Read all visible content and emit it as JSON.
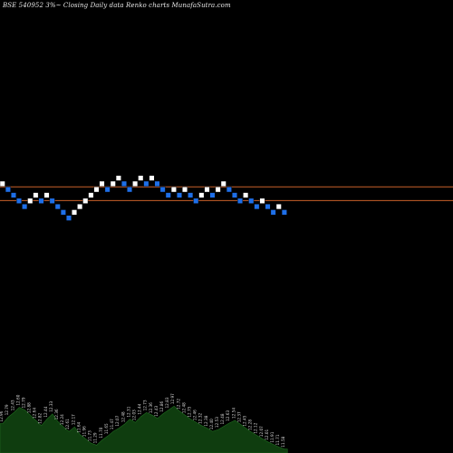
{
  "title": "BSE 540952  3%~  Closing Daily data  Renko  charts MunafaSutra.com",
  "colors": {
    "background": "#000000",
    "brick_up": "#ffffff",
    "brick_down": "#1e6fe8",
    "brick_border": "#000000",
    "reference_line": "#c8602a",
    "volume_fill": "#0f3d0f",
    "volume_stroke": "#1f6b1f",
    "label": "#d9d9d9"
  },
  "chart_data": [
    {
      "type": "renko",
      "title": "BSE 540952  3%~  Closing Daily data  Renko  charts MunafaSutra.com",
      "brick_size": "3%",
      "bricks": [
        {
          "level": 0,
          "dir": "up"
        },
        {
          "level": 1,
          "dir": "down"
        },
        {
          "level": 2,
          "dir": "down"
        },
        {
          "level": 3,
          "dir": "down"
        },
        {
          "level": 4,
          "dir": "down"
        },
        {
          "level": 3,
          "dir": "up"
        },
        {
          "level": 2,
          "dir": "up"
        },
        {
          "level": 3,
          "dir": "down"
        },
        {
          "level": 2,
          "dir": "up"
        },
        {
          "level": 3,
          "dir": "down"
        },
        {
          "level": 4,
          "dir": "down"
        },
        {
          "level": 5,
          "dir": "down"
        },
        {
          "level": 6,
          "dir": "down"
        },
        {
          "level": 5,
          "dir": "up"
        },
        {
          "level": 4,
          "dir": "up"
        },
        {
          "level": 3,
          "dir": "up"
        },
        {
          "level": 2,
          "dir": "up"
        },
        {
          "level": 1,
          "dir": "up"
        },
        {
          "level": 0,
          "dir": "up"
        },
        {
          "level": 1,
          "dir": "down"
        },
        {
          "level": 0,
          "dir": "up"
        },
        {
          "level": -1,
          "dir": "up"
        },
        {
          "level": 0,
          "dir": "down"
        },
        {
          "level": 1,
          "dir": "down"
        },
        {
          "level": 0,
          "dir": "up"
        },
        {
          "level": -1,
          "dir": "up"
        },
        {
          "level": 0,
          "dir": "down"
        },
        {
          "level": -1,
          "dir": "up"
        },
        {
          "level": 0,
          "dir": "down"
        },
        {
          "level": 1,
          "dir": "down"
        },
        {
          "level": 2,
          "dir": "down"
        },
        {
          "level": 1,
          "dir": "up"
        },
        {
          "level": 2,
          "dir": "down"
        },
        {
          "level": 1,
          "dir": "up"
        },
        {
          "level": 2,
          "dir": "down"
        },
        {
          "level": 3,
          "dir": "down"
        },
        {
          "level": 2,
          "dir": "up"
        },
        {
          "level": 1,
          "dir": "up"
        },
        {
          "level": 2,
          "dir": "down"
        },
        {
          "level": 1,
          "dir": "up"
        },
        {
          "level": 0,
          "dir": "up"
        },
        {
          "level": 1,
          "dir": "down"
        },
        {
          "level": 2,
          "dir": "down"
        },
        {
          "level": 3,
          "dir": "down"
        },
        {
          "level": 2,
          "dir": "up"
        },
        {
          "level": 3,
          "dir": "down"
        },
        {
          "level": 4,
          "dir": "down"
        },
        {
          "level": 3,
          "dir": "up"
        },
        {
          "level": 4,
          "dir": "down"
        },
        {
          "level": 5,
          "dir": "down"
        },
        {
          "level": 4,
          "dir": "up"
        },
        {
          "level": 5,
          "dir": "down"
        }
      ],
      "reference_lines": [
        {
          "level": 0.5
        },
        {
          "level": 2.9
        }
      ],
      "volume": [
        {
          "v": 0.45,
          "label": "12.96"
        },
        {
          "v": 0.55,
          "label": "12.79"
        },
        {
          "v": 0.62,
          "label": "12.43"
        },
        {
          "v": 0.7,
          "label": "12.60"
        },
        {
          "v": 0.66,
          "label": "12.79"
        },
        {
          "v": 0.58,
          "label": "12.88"
        },
        {
          "v": 0.5,
          "label": "12.64"
        },
        {
          "v": 0.42,
          "label": "12.82"
        },
        {
          "v": 0.52,
          "label": "12.44"
        },
        {
          "v": 0.6,
          "label": "12.33"
        },
        {
          "v": 0.48,
          "label": "12.36"
        },
        {
          "v": 0.4,
          "label": "12.24"
        },
        {
          "v": 0.33,
          "label": "12.61"
        },
        {
          "v": 0.4,
          "label": "12.17"
        },
        {
          "v": 0.28,
          "label": "11.64"
        },
        {
          "v": 0.22,
          "label": "11.96"
        },
        {
          "v": 0.15,
          "label": "11.73"
        },
        {
          "v": 0.12,
          "label": "11.29"
        },
        {
          "v": 0.2,
          "label": "11.70"
        },
        {
          "v": 0.26,
          "label": "11.65"
        },
        {
          "v": 0.33,
          "label": "11.47"
        },
        {
          "v": 0.38,
          "label": "12.07"
        },
        {
          "v": 0.44,
          "label": "12.48"
        },
        {
          "v": 0.52,
          "label": "12.31"
        },
        {
          "v": 0.47,
          "label": "12.03"
        },
        {
          "v": 0.56,
          "label": "12.44"
        },
        {
          "v": 0.62,
          "label": "12.73"
        },
        {
          "v": 0.58,
          "label": "12.36"
        },
        {
          "v": 0.53,
          "label": "12.43"
        },
        {
          "v": 0.6,
          "label": "12.86"
        },
        {
          "v": 0.66,
          "label": "12.83"
        },
        {
          "v": 0.72,
          "label": "12.97"
        },
        {
          "v": 0.64,
          "label": "12.72"
        },
        {
          "v": 0.58,
          "label": "12.48"
        },
        {
          "v": 0.52,
          "label": "12.75"
        },
        {
          "v": 0.47,
          "label": "12.46"
        },
        {
          "v": 0.42,
          "label": "12.32"
        },
        {
          "v": 0.38,
          "label": "12.38"
        },
        {
          "v": 0.33,
          "label": "12.40"
        },
        {
          "v": 0.36,
          "label": "12.53"
        },
        {
          "v": 0.41,
          "label": "12.48"
        },
        {
          "v": 0.46,
          "label": "12.63"
        },
        {
          "v": 0.5,
          "label": "12.54"
        },
        {
          "v": 0.44,
          "label": "12.37"
        },
        {
          "v": 0.38,
          "label": "12.45"
        },
        {
          "v": 0.32,
          "label": "12.28"
        },
        {
          "v": 0.27,
          "label": "12.12"
        },
        {
          "v": 0.22,
          "label": "12.07"
        },
        {
          "v": 0.17,
          "label": "12.01"
        },
        {
          "v": 0.13,
          "label": "11.91"
        },
        {
          "v": 0.09,
          "label": "11.71"
        },
        {
          "v": 0.06,
          "label": "11.58"
        }
      ],
      "xlabel": "",
      "ylabel": ""
    }
  ]
}
